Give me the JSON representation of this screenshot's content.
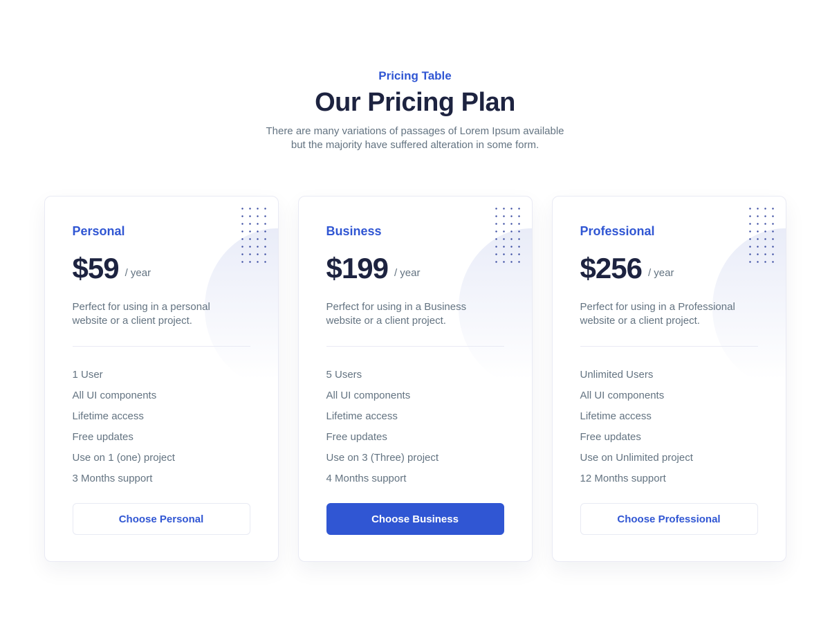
{
  "header": {
    "eyebrow": "Pricing Table",
    "title": "Our Pricing Plan",
    "description_line1": "There are many variations of passages of Lorem Ipsum available",
    "description_line2": "but the majority have suffered alteration in some form."
  },
  "colors": {
    "primary_blue": "#3056D3",
    "dark_navy": "#1D2340",
    "muted_gray": "#637381",
    "card_border": "#E9EAF4",
    "blob_lavender": "#E9ECF8",
    "dot_navy": "#3D4EA3",
    "background": "#FFFFFF"
  },
  "plans": [
    {
      "name": "Personal",
      "price": "$59",
      "period": "/ year",
      "description": "Perfect for using in a personal website or a client project.",
      "features": [
        "1 User",
        "All UI components",
        "Lifetime access",
        "Free updates",
        "Use on 1 (one) project",
        "3 Months support"
      ],
      "cta_label": "Choose Personal",
      "cta_style": "outline"
    },
    {
      "name": "Business",
      "price": "$199",
      "period": "/ year",
      "description": "Perfect for using in a Business website or a client project.",
      "features": [
        "5 Users",
        "All UI components",
        "Lifetime access",
        "Free updates",
        "Use on 3 (Three) project",
        "4 Months support"
      ],
      "cta_label": "Choose Business",
      "cta_style": "solid"
    },
    {
      "name": "Professional",
      "price": "$256",
      "period": "/ year",
      "description": "Perfect for using in a Professional website or a client project.",
      "features": [
        "Unlimited Users",
        "All UI components",
        "Lifetime access",
        "Free updates",
        "Use on Unlimited project",
        "12 Months support"
      ],
      "cta_label": "Choose Professional",
      "cta_style": "outline"
    }
  ]
}
